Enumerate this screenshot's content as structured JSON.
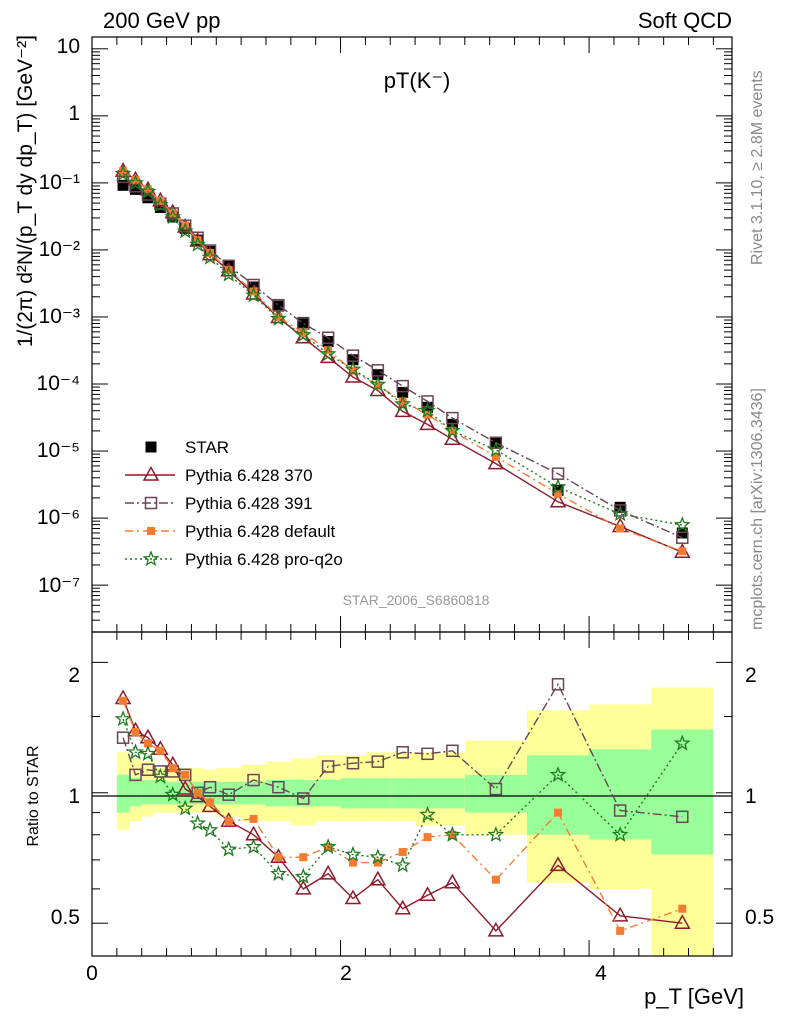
{
  "header": {
    "left": "200 GeV pp",
    "right": "Soft QCD"
  },
  "side_labels": {
    "rivet": "Rivet 3.1.10, ≥ 2.8M events",
    "mcplots": "mcplots.cern.ch [arXiv:1306.3436]"
  },
  "analysis_id": "STAR_2006_S6860818",
  "colors": {
    "STAR": "#000000",
    "p370": "#8b1a2b",
    "p391": "#6b4456",
    "pdefault": "#f47c30",
    "pq2o": "#1f7a1f",
    "band_yellow": "#ffff99",
    "band_green": "#99ff99"
  },
  "chart_data": [
    {
      "type": "scatter",
      "title": "pT(K⁻)",
      "ylabel": "1/(2π) d²N/(p_T dy dp_T) [GeV⁻²]",
      "ylog": true,
      "ylim": [
        2e-08,
        15
      ],
      "xlim": [
        0,
        5.15
      ],
      "ytick_labels": [
        "10",
        "1",
        "10⁻¹",
        "10⁻²",
        "10⁻³",
        "10⁻⁴",
        "10⁻⁵",
        "10⁻⁶",
        "10⁻⁷"
      ],
      "legend_position": "bottom-left",
      "x": [
        0.25,
        0.35,
        0.45,
        0.55,
        0.65,
        0.75,
        0.85,
        0.95,
        1.1,
        1.3,
        1.5,
        1.7,
        1.9,
        2.1,
        2.3,
        2.5,
        2.7,
        2.9,
        3.25,
        3.75,
        4.25,
        4.75
      ],
      "series": [
        {
          "name": "STAR",
          "key": "STAR",
          "values": [
            0.092,
            0.08,
            0.06,
            0.043,
            0.031,
            0.021,
            0.014,
            0.0095,
            0.0058,
            0.0028,
            0.00145,
            0.00083,
            0.00043,
            0.00023,
            0.000138,
            7.5e-05,
            4.5e-05,
            2.5e-05,
            1.3e-05,
            2.6e-06,
            1.45e-06,
            6e-07
          ]
        },
        {
          "name": "Pythia 6.428 370",
          "key": "p370",
          "values": [
            0.15,
            0.111,
            0.079,
            0.054,
            0.036,
            0.022,
            0.0136,
            0.0085,
            0.0049,
            0.0022,
            0.00098,
            0.00049,
            0.00025,
            0.000127,
            8e-05,
            3.9e-05,
            2.5e-05,
            1.5e-05,
            6.5e-06,
            1.75e-06,
            7.5e-07,
            3.1e-07
          ]
        },
        {
          "name": "Pythia 6.428 391",
          "key": "p391",
          "values": [
            0.123,
            0.089,
            0.067,
            0.049,
            0.035,
            0.023,
            0.0152,
            0.0098,
            0.0058,
            0.003,
            0.0015,
            0.0008,
            0.00049,
            0.000265,
            0.00016,
            9.3e-05,
            5.5e-05,
            3.1e-05,
            1.33e-05,
            4.6e-06,
            1.3e-06,
            5.1e-07
          ]
        },
        {
          "name": "Pythia 6.428 default",
          "key": "pdefault",
          "values": [
            0.15,
            0.11,
            0.08,
            0.054,
            0.035,
            0.023,
            0.014,
            0.009,
            0.005,
            0.0024,
            0.001,
            0.00058,
            0.00032,
            0.000158,
            9.5e-05,
            5.5e-05,
            3.5e-05,
            2e-05,
            8.2e-06,
            2.3e-06,
            7e-07,
            3.2e-07
          ]
        },
        {
          "name": "Pythia 6.428 pro-q2o",
          "key": "pq2o",
          "values": [
            0.137,
            0.099,
            0.074,
            0.047,
            0.031,
            0.019,
            0.012,
            0.0077,
            0.0043,
            0.0021,
            0.00094,
            0.00054,
            0.00028,
            0.000165,
            9.8e-05,
            5e-05,
            4e-05,
            2e-05,
            1.04e-05,
            2.9e-06,
            1.15e-06,
            7.9e-07
          ]
        }
      ]
    },
    {
      "type": "scatter",
      "ylabel": "Ratio to STAR",
      "xlabel": "p_T [GeV]",
      "ylog": true,
      "ylim": [
        0.42,
        2.35
      ],
      "xlim": [
        0,
        5.15
      ],
      "xtick_labels": [
        "0",
        "2",
        "4"
      ],
      "ytick_labels": [
        "0.5",
        "1",
        "2"
      ],
      "x": [
        0.25,
        0.35,
        0.45,
        0.55,
        0.65,
        0.75,
        0.85,
        0.95,
        1.1,
        1.3,
        1.5,
        1.7,
        1.9,
        2.1,
        2.3,
        2.5,
        2.7,
        2.9,
        3.25,
        3.75,
        4.25,
        4.75
      ],
      "bands": {
        "edges": [
          0.2,
          0.3,
          0.4,
          0.5,
          0.6,
          0.7,
          0.8,
          0.9,
          1.0,
          1.2,
          1.4,
          1.6,
          1.8,
          2.0,
          2.2,
          2.4,
          2.6,
          2.8,
          3.0,
          3.5,
          4.0,
          4.5,
          5.0
        ],
        "yellow_lo": [
          0.82,
          0.86,
          0.88,
          0.9,
          0.9,
          0.9,
          0.9,
          0.9,
          0.88,
          0.86,
          0.86,
          0.84,
          0.86,
          0.86,
          0.86,
          0.86,
          0.84,
          0.84,
          0.8,
          0.62,
          0.6,
          0.4
        ],
        "yellow_hi": [
          1.24,
          1.2,
          1.18,
          1.14,
          1.14,
          1.14,
          1.14,
          1.13,
          1.14,
          1.16,
          1.18,
          1.2,
          1.22,
          1.22,
          1.24,
          1.24,
          1.24,
          1.24,
          1.32,
          1.55,
          1.6,
          1.75
        ],
        "green_lo": [
          0.9,
          0.93,
          0.94,
          0.94,
          0.94,
          0.94,
          0.94,
          0.94,
          0.94,
          0.94,
          0.93,
          0.93,
          0.93,
          0.92,
          0.92,
          0.92,
          0.92,
          0.92,
          0.9,
          0.8,
          0.78,
          0.72
        ],
        "green_hi": [
          1.1,
          1.08,
          1.07,
          1.07,
          1.06,
          1.06,
          1.06,
          1.06,
          1.06,
          1.06,
          1.07,
          1.07,
          1.07,
          1.08,
          1.08,
          1.08,
          1.08,
          1.08,
          1.1,
          1.22,
          1.26,
          1.4
        ]
      },
      "series": [
        {
          "name": "Pythia 6.428 370",
          "key": "p370",
          "values": [
            1.65,
            1.39,
            1.34,
            1.26,
            1.16,
            1.02,
            0.98,
            0.93,
            0.86,
            0.8,
            0.71,
            0.6,
            0.65,
            0.57,
            0.63,
            0.54,
            0.58,
            0.62,
            0.48,
            0.68,
            0.52,
            0.5
          ]
        },
        {
          "name": "Pythia 6.428 391",
          "key": "p391",
          "values": [
            1.34,
            1.1,
            1.13,
            1.12,
            1.12,
            1.1,
            1.0,
            1.03,
            0.99,
            1.07,
            1.03,
            0.97,
            1.15,
            1.17,
            1.18,
            1.24,
            1.23,
            1.25,
            1.02,
            1.78,
            0.91,
            0.88
          ]
        },
        {
          "name": "Pythia 6.428 default",
          "key": "pdefault",
          "values": [
            1.63,
            1.38,
            1.3,
            1.25,
            1.14,
            1.1,
            1.0,
            0.95,
            0.86,
            0.87,
            0.71,
            0.71,
            0.75,
            0.69,
            0.69,
            0.73,
            0.79,
            0.8,
            0.63,
            0.9,
            0.48,
            0.54
          ]
        },
        {
          "name": "Pythia 6.428 pro-q2o",
          "key": "pq2o",
          "values": [
            1.48,
            1.24,
            1.23,
            1.09,
            0.99,
            0.92,
            0.85,
            0.82,
            0.74,
            0.75,
            0.65,
            0.64,
            0.75,
            0.72,
            0.71,
            0.68,
            0.89,
            0.8,
            0.8,
            1.1,
            0.8,
            1.3
          ]
        }
      ]
    }
  ]
}
